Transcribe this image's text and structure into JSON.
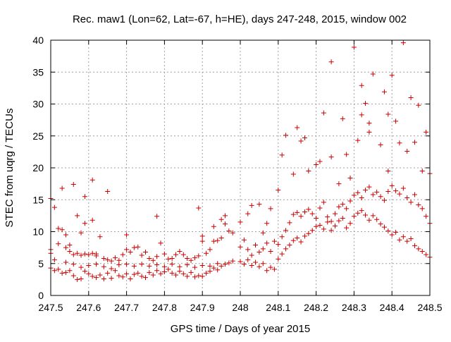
{
  "chart_data": {
    "type": "scatter",
    "title": "Rec. maw1 (Lon=62, Lat=-67, h=HE), days 247-248, 2015, window 002",
    "xlabel": "GPS time / Days of year 2015",
    "ylabel": "STEC from uqrg / TECUs",
    "xlim": [
      247.5,
      248.5
    ],
    "ylim": [
      0,
      40
    ],
    "x_ticks": [
      {
        "value": 247.5,
        "label": "247.5"
      },
      {
        "value": 247.6,
        "label": "247.6"
      },
      {
        "value": 247.7,
        "label": "247.7"
      },
      {
        "value": 247.8,
        "label": "247.8"
      },
      {
        "value": 247.9,
        "label": "247.9"
      },
      {
        "value": 248.0,
        "label": "248"
      },
      {
        "value": 248.1,
        "label": "248.1"
      },
      {
        "value": 248.2,
        "label": "248.2"
      },
      {
        "value": 248.3,
        "label": "248.3"
      },
      {
        "value": 248.4,
        "label": "248.4"
      },
      {
        "value": 248.5,
        "label": "248.5"
      }
    ],
    "y_ticks": [
      {
        "value": 0,
        "label": "0"
      },
      {
        "value": 5,
        "label": "5"
      },
      {
        "value": 10,
        "label": "10"
      },
      {
        "value": 15,
        "label": "15"
      },
      {
        "value": 20,
        "label": "20"
      },
      {
        "value": 25,
        "label": "25"
      },
      {
        "value": 30,
        "label": "30"
      },
      {
        "value": 35,
        "label": "35"
      },
      {
        "value": 40,
        "label": "40"
      }
    ],
    "grid": true,
    "marker": "+",
    "color": "#cc0000",
    "points": [
      [
        247.5,
        15.2
      ],
      [
        247.51,
        13.8
      ],
      [
        247.52,
        10.5
      ],
      [
        247.53,
        16.8
      ],
      [
        247.56,
        17.4
      ],
      [
        247.59,
        15.5
      ],
      [
        247.61,
        18.1
      ],
      [
        247.61,
        11.8
      ],
      [
        247.57,
        12.5
      ],
      [
        247.59,
        11.3
      ],
      [
        247.65,
        16.3
      ],
      [
        247.78,
        12.4
      ],
      [
        247.89,
        13.7
      ],
      [
        247.93,
        10.8
      ],
      [
        247.95,
        11.9
      ],
      [
        247.96,
        12.5
      ],
      [
        247.5,
        6.6
      ],
      [
        247.5,
        7.2
      ],
      [
        247.51,
        5.6
      ],
      [
        247.52,
        8.1
      ],
      [
        247.53,
        10.3
      ],
      [
        247.54,
        9.5
      ],
      [
        247.54,
        7.5
      ],
      [
        247.55,
        7.9
      ],
      [
        247.55,
        6.9
      ],
      [
        247.56,
        6.4
      ],
      [
        247.57,
        6.6
      ],
      [
        247.58,
        6.3
      ],
      [
        247.58,
        9.8
      ],
      [
        247.59,
        6.5
      ],
      [
        247.6,
        6.4
      ],
      [
        247.61,
        6.6
      ],
      [
        247.62,
        6.2
      ],
      [
        247.63,
        9.2
      ],
      [
        247.62,
        6.5
      ],
      [
        247.64,
        5.8
      ],
      [
        247.65,
        5.6
      ],
      [
        247.66,
        5.4
      ],
      [
        247.67,
        5.9
      ],
      [
        247.68,
        5.5
      ],
      [
        247.69,
        6.4
      ],
      [
        247.7,
        7.2
      ],
      [
        247.7,
        9.5
      ],
      [
        247.71,
        6.8
      ],
      [
        247.72,
        7.5
      ],
      [
        247.73,
        7.6
      ],
      [
        247.74,
        6.3
      ],
      [
        247.75,
        6.8
      ],
      [
        247.76,
        5.8
      ],
      [
        247.77,
        5.5
      ],
      [
        247.78,
        6.1
      ],
      [
        247.79,
        8.2
      ],
      [
        247.8,
        6.5
      ],
      [
        247.81,
        5.7
      ],
      [
        247.82,
        5.8
      ],
      [
        247.83,
        6.4
      ],
      [
        247.84,
        6.9
      ],
      [
        247.85,
        6.4
      ],
      [
        247.86,
        5.8
      ],
      [
        247.87,
        5.5
      ],
      [
        247.88,
        5.9
      ],
      [
        247.89,
        6.2
      ],
      [
        247.9,
        8.5
      ],
      [
        247.9,
        9.3
      ],
      [
        247.91,
        6.6
      ],
      [
        247.92,
        7.2
      ],
      [
        247.93,
        8.5
      ],
      [
        247.94,
        8.6
      ],
      [
        247.95,
        9.0
      ],
      [
        247.96,
        11.2
      ],
      [
        247.97,
        10.1
      ],
      [
        247.98,
        9.8
      ],
      [
        247.5,
        4.3
      ],
      [
        247.51,
        3.9
      ],
      [
        247.52,
        4.1
      ],
      [
        247.53,
        3.5
      ],
      [
        247.54,
        3.6
      ],
      [
        247.55,
        3.9
      ],
      [
        247.56,
        3.1
      ],
      [
        247.57,
        2.5
      ],
      [
        247.58,
        2.6
      ],
      [
        247.59,
        3.8
      ],
      [
        247.6,
        3.4
      ],
      [
        247.61,
        3.0
      ],
      [
        247.62,
        2.8
      ],
      [
        247.63,
        3.2
      ],
      [
        247.64,
        2.6
      ],
      [
        247.65,
        3.5
      ],
      [
        247.66,
        2.7
      ],
      [
        247.67,
        3.9
      ],
      [
        247.68,
        3.1
      ],
      [
        247.69,
        2.9
      ],
      [
        247.7,
        3.4
      ],
      [
        247.71,
        2.6
      ],
      [
        247.72,
        3.3
      ],
      [
        247.73,
        3.5
      ],
      [
        247.74,
        3.0
      ],
      [
        247.75,
        2.8
      ],
      [
        247.76,
        3.6
      ],
      [
        247.77,
        3.2
      ],
      [
        247.78,
        3.9
      ],
      [
        247.79,
        3.4
      ],
      [
        247.8,
        3.7
      ],
      [
        247.81,
        4.1
      ],
      [
        247.82,
        3.5
      ],
      [
        247.83,
        3.2
      ],
      [
        247.84,
        3.8
      ],
      [
        247.85,
        3.4
      ],
      [
        247.86,
        3.0
      ],
      [
        247.87,
        3.6
      ],
      [
        247.88,
        2.9
      ],
      [
        247.89,
        3.1
      ],
      [
        247.9,
        3.0
      ],
      [
        247.91,
        3.5
      ],
      [
        247.92,
        3.8
      ],
      [
        247.93,
        4.3
      ],
      [
        247.94,
        4.0
      ],
      [
        247.95,
        4.6
      ],
      [
        247.96,
        4.9
      ],
      [
        247.97,
        5.1
      ],
      [
        247.98,
        5.4
      ],
      [
        247.54,
        5.2
      ],
      [
        247.56,
        4.9
      ],
      [
        247.58,
        4.4
      ],
      [
        247.6,
        4.7
      ],
      [
        247.62,
        4.9
      ],
      [
        247.64,
        4.5
      ],
      [
        247.66,
        4.2
      ],
      [
        247.68,
        4.8
      ],
      [
        247.7,
        4.9
      ],
      [
        247.72,
        4.6
      ],
      [
        247.74,
        4.9
      ],
      [
        247.76,
        4.6
      ],
      [
        247.78,
        4.8
      ],
      [
        247.8,
        4.5
      ],
      [
        247.82,
        4.9
      ],
      [
        247.84,
        4.5
      ],
      [
        247.86,
        4.8
      ],
      [
        247.88,
        4.4
      ],
      [
        247.9,
        4.7
      ],
      [
        247.92,
        4.6
      ],
      [
        247.94,
        5.0
      ],
      [
        248.0,
        11.5
      ],
      [
        248.02,
        12.8
      ],
      [
        248.03,
        14.1
      ],
      [
        248.05,
        14.3
      ],
      [
        248.06,
        9.8
      ],
      [
        248.07,
        11.3
      ],
      [
        248.08,
        13.6
      ],
      [
        248.1,
        16.5
      ],
      [
        248.11,
        22.0
      ],
      [
        248.12,
        25.1
      ],
      [
        248.14,
        19.0
      ],
      [
        248.15,
        26.3
      ],
      [
        248.16,
        24.2
      ],
      [
        248.17,
        24.7
      ],
      [
        248.18,
        19.5
      ],
      [
        248.2,
        20.5
      ],
      [
        248.21,
        21.0
      ],
      [
        248.22,
        28.6
      ],
      [
        248.24,
        21.7
      ],
      [
        248.24,
        36.6
      ],
      [
        248.26,
        17.5
      ],
      [
        248.27,
        27.7
      ],
      [
        248.28,
        22.1
      ],
      [
        248.29,
        18.4
      ],
      [
        248.31,
        24.3
      ],
      [
        248.3,
        38.9
      ],
      [
        248.32,
        32.9
      ],
      [
        248.32,
        28.3
      ],
      [
        248.33,
        30.1
      ],
      [
        248.34,
        27.0
      ],
      [
        248.34,
        25.6
      ],
      [
        248.35,
        34.7
      ],
      [
        248.37,
        23.6
      ],
      [
        248.38,
        31.9
      ],
      [
        248.39,
        19.5
      ],
      [
        248.39,
        28.4
      ],
      [
        248.4,
        34.5
      ],
      [
        248.41,
        27.3
      ],
      [
        248.42,
        23.9
      ],
      [
        248.43,
        39.6
      ],
      [
        248.44,
        22.6
      ],
      [
        248.45,
        31.0
      ],
      [
        248.46,
        24.0
      ],
      [
        248.47,
        29.8
      ],
      [
        248.48,
        19.5
      ],
      [
        248.49,
        25.6
      ],
      [
        248.5,
        19.1
      ],
      [
        248.0,
        7.6
      ],
      [
        248.01,
        8.7
      ],
      [
        248.02,
        7.2
      ],
      [
        248.03,
        6.3
      ],
      [
        248.04,
        7.9
      ],
      [
        248.05,
        6.8
      ],
      [
        248.06,
        7.3
      ],
      [
        248.07,
        8.2
      ],
      [
        248.08,
        6.9
      ],
      [
        248.09,
        8.5
      ],
      [
        248.1,
        8.0
      ],
      [
        248.11,
        9.2
      ],
      [
        248.12,
        10.2
      ],
      [
        248.13,
        11.4
      ],
      [
        248.14,
        12.7
      ],
      [
        248.15,
        13.0
      ],
      [
        248.16,
        12.4
      ],
      [
        248.17,
        13.1
      ],
      [
        248.18,
        13.5
      ],
      [
        248.19,
        12.8
      ],
      [
        248.2,
        12.1
      ],
      [
        248.21,
        13.7
      ],
      [
        248.22,
        14.6
      ],
      [
        248.23,
        12.3
      ],
      [
        248.24,
        11.6
      ],
      [
        248.25,
        12.8
      ],
      [
        248.26,
        13.9
      ],
      [
        248.27,
        14.3
      ],
      [
        248.28,
        13.6
      ],
      [
        248.29,
        14.8
      ],
      [
        248.3,
        15.7
      ],
      [
        248.31,
        16.1
      ],
      [
        248.32,
        15.3
      ],
      [
        248.33,
        16.5
      ],
      [
        248.34,
        17.0
      ],
      [
        248.35,
        15.8
      ],
      [
        248.36,
        16.2
      ],
      [
        248.37,
        15.5
      ],
      [
        248.38,
        14.9
      ],
      [
        248.39,
        16.3
      ],
      [
        248.4,
        17.2
      ],
      [
        248.41,
        16.4
      ],
      [
        248.42,
        15.9
      ],
      [
        248.43,
        16.8
      ],
      [
        248.44,
        15.3
      ],
      [
        248.45,
        14.6
      ],
      [
        248.46,
        15.8
      ],
      [
        248.47,
        14.2
      ],
      [
        248.48,
        13.6
      ],
      [
        248.49,
        12.4
      ],
      [
        248.5,
        11.3
      ],
      [
        248.0,
        5.3
      ],
      [
        248.01,
        4.9
      ],
      [
        248.02,
        5.6
      ],
      [
        248.03,
        4.7
      ],
      [
        248.04,
        5.2
      ],
      [
        248.05,
        4.5
      ],
      [
        248.06,
        5.0
      ],
      [
        248.07,
        3.9
      ],
      [
        248.08,
        4.4
      ],
      [
        248.09,
        4.1
      ],
      [
        248.1,
        5.7
      ],
      [
        248.11,
        6.5
      ],
      [
        248.12,
        7.3
      ],
      [
        248.13,
        7.9
      ],
      [
        248.14,
        8.6
      ],
      [
        248.15,
        9.0
      ],
      [
        248.16,
        8.4
      ],
      [
        248.17,
        9.3
      ],
      [
        248.18,
        9.7
      ],
      [
        248.19,
        10.2
      ],
      [
        248.2,
        10.8
      ],
      [
        248.21,
        11.0
      ],
      [
        248.22,
        10.4
      ],
      [
        248.23,
        11.5
      ],
      [
        248.24,
        10.2
      ],
      [
        248.25,
        10.9
      ],
      [
        248.26,
        11.7
      ],
      [
        248.27,
        12.1
      ],
      [
        248.28,
        10.6
      ],
      [
        248.29,
        11.3
      ],
      [
        248.3,
        12.4
      ],
      [
        248.31,
        12.9
      ],
      [
        248.32,
        13.3
      ],
      [
        248.33,
        12.6
      ],
      [
        248.34,
        11.8
      ],
      [
        248.35,
        12.5
      ],
      [
        248.36,
        11.9
      ],
      [
        248.37,
        11.2
      ],
      [
        248.38,
        10.7
      ],
      [
        248.39,
        10.1
      ],
      [
        248.4,
        9.5
      ],
      [
        248.41,
        9.9
      ],
      [
        248.42,
        8.7
      ],
      [
        248.43,
        9.2
      ],
      [
        248.44,
        8.5
      ],
      [
        248.45,
        8.9
      ],
      [
        248.46,
        7.8
      ],
      [
        248.47,
        7.3
      ],
      [
        248.48,
        6.9
      ],
      [
        248.49,
        6.4
      ],
      [
        248.5,
        6.0
      ]
    ]
  }
}
